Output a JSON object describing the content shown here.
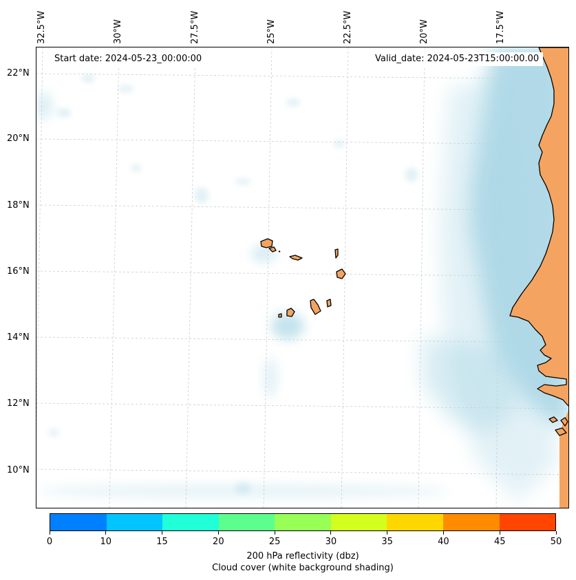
{
  "map": {
    "start_date": "Start date: 2024-05-23_00:00:00",
    "valid_date": "Valid_date: 2024-05-23T15:00:00.00",
    "lat_labels": [
      "22°N",
      "20°N",
      "18°N",
      "16°N",
      "14°N",
      "12°N",
      "10°N"
    ],
    "lon_labels": [
      "32.5°W",
      "30°W",
      "27.5°W",
      "25°W",
      "22.5°W",
      "20°W",
      "17.5°W"
    ],
    "land_color": "#f4a460",
    "cloud_color": "#add8e6",
    "grid_color": "#cccccc"
  },
  "colorbar": {
    "colors": [
      "#0080ff",
      "#00c5ff",
      "#20ffd8",
      "#5cff8e",
      "#97ff55",
      "#d4ff1d",
      "#ffd700",
      "#ff8b00",
      "#ff4500"
    ],
    "ticks": [
      "0",
      "10",
      "15",
      "20",
      "25",
      "30",
      "35",
      "40",
      "45",
      "50"
    ],
    "label_line1": "200 hPa reflectivity (dbz)",
    "label_line2": "Cloud cover (white background shading)"
  }
}
